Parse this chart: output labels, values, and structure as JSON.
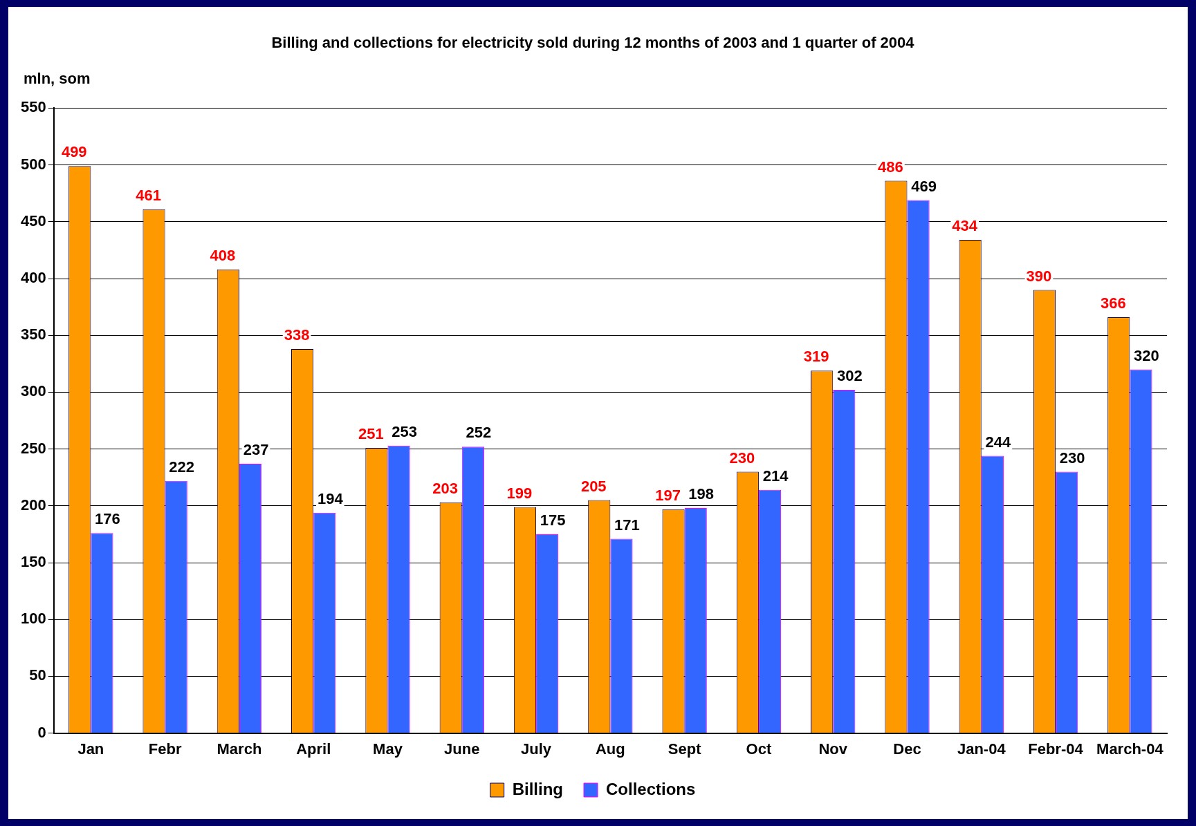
{
  "chart_data": {
    "type": "bar",
    "title": "Billing and collections for electricity sold during 12 months of 2003 and 1 quarter of 2004",
    "ylabel": "mln, som",
    "categories": [
      "Jan",
      "Febr",
      "March",
      "April",
      "May",
      "June",
      "July",
      "Aug",
      "Sept",
      "Oct",
      "Nov",
      "Dec",
      "Jan-04",
      "Febr-04",
      "March-04"
    ],
    "series": [
      {
        "name": "Billing",
        "color": "#ff9900",
        "values": [
          499,
          461,
          408,
          338,
          251,
          203,
          199,
          205,
          197,
          230,
          319,
          486,
          434,
          390,
          366
        ]
      },
      {
        "name": "Collections",
        "color": "#3366ff",
        "values": [
          176,
          222,
          237,
          194,
          253,
          252,
          175,
          171,
          198,
          214,
          302,
          469,
          244,
          230,
          320
        ]
      }
    ],
    "ylim": [
      0,
      550
    ],
    "yticks": [
      0,
      50,
      100,
      150,
      200,
      250,
      300,
      350,
      400,
      450,
      500,
      550
    ],
    "grid": "y",
    "legend": "bottom",
    "data_labels": true
  }
}
